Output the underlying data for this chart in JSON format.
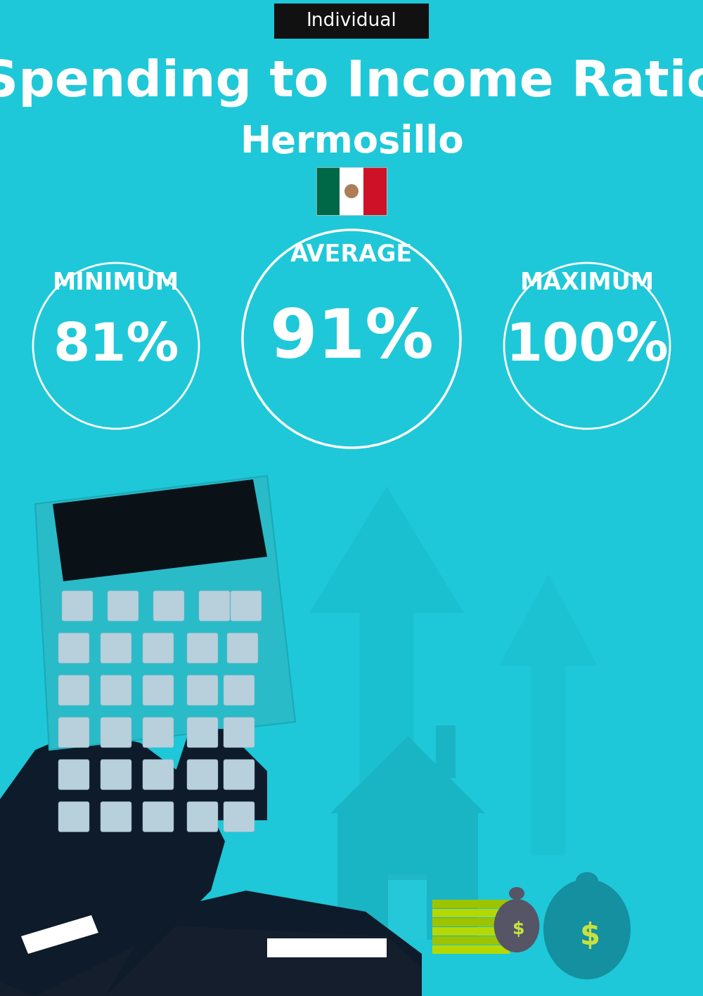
{
  "bg_color": "#1EC8D8",
  "title": "Spending to Income Ratio",
  "subtitle": "Hermosillo",
  "tag_text": "Individual",
  "tag_bg": "#111111",
  "tag_text_color": "#ffffff",
  "min_label": "MINIMUM",
  "avg_label": "AVERAGE",
  "max_label": "MAXIMUM",
  "min_value": "81%",
  "avg_value": "91%",
  "max_value": "100%",
  "circle_color": "#ffffff",
  "text_color": "#ffffff",
  "title_fontsize": 52,
  "subtitle_fontsize": 38,
  "label_fontsize": 24,
  "value_fontsize_small": 54,
  "value_fontsize_large": 70,
  "tag_fontsize": 19
}
